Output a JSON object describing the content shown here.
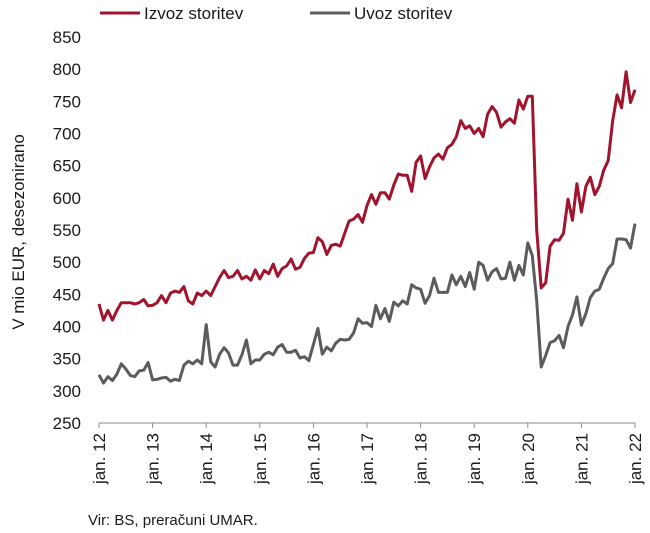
{
  "chart_data": {
    "type": "line",
    "title": "",
    "ylabel": "V mio EUR, desezonirano",
    "xlabel": "",
    "ylim": [
      250,
      850
    ],
    "yticks": [
      250,
      300,
      350,
      400,
      450,
      500,
      550,
      600,
      650,
      700,
      750,
      800,
      850
    ],
    "x_start": "2012-01",
    "x_end": "2022-01",
    "x_frequency": "monthly",
    "xticks": [
      "jan. 12",
      "jan. 13",
      "jan. 14",
      "jan. 15",
      "jan. 16",
      "jan. 17",
      "jan. 18",
      "jan. 19",
      "jan. 20",
      "jan. 21",
      "jan. 22"
    ],
    "grid": false,
    "legend_position": "top-left",
    "series": [
      {
        "name": "Izvoz storitev",
        "color": "#a0152d",
        "values": [
          435,
          410,
          425,
          410,
          425,
          437,
          437,
          437,
          435,
          437,
          442,
          432,
          433,
          437,
          448,
          437,
          452,
          455,
          453,
          462,
          440,
          435,
          452,
          448,
          455,
          448,
          462,
          476,
          487,
          476,
          478,
          487,
          474,
          478,
          472,
          488,
          474,
          487,
          482,
          497,
          478,
          490,
          494,
          505,
          489,
          492,
          506,
          514,
          515,
          538,
          532,
          512,
          526,
          528,
          525,
          545,
          564,
          567,
          574,
          562,
          588,
          605,
          590,
          608,
          608,
          598,
          620,
          637,
          635,
          635,
          610,
          655,
          665,
          630,
          648,
          662,
          668,
          660,
          678,
          683,
          695,
          720,
          708,
          712,
          700,
          708,
          695,
          730,
          742,
          733,
          710,
          718,
          723,
          716,
          752,
          738,
          758,
          758,
          550,
          460,
          468,
          525,
          535,
          534,
          545,
          598,
          565,
          622,
          578,
          618,
          632,
          605,
          618,
          643,
          658,
          720,
          760,
          740,
          796,
          748,
          768
        ]
      },
      {
        "name": "Uvoz storitev",
        "color": "#5c5c5c",
        "values": [
          325,
          312,
          322,
          316,
          326,
          342,
          334,
          324,
          322,
          331,
          332,
          344,
          317,
          318,
          320,
          321,
          315,
          318,
          316,
          340,
          346,
          342,
          348,
          342,
          403,
          345,
          337,
          357,
          367,
          359,
          340,
          340,
          356,
          379,
          342,
          348,
          348,
          357,
          360,
          356,
          368,
          372,
          360,
          360,
          363,
          351,
          353,
          347,
          372,
          397,
          357,
          368,
          362,
          374,
          380,
          379,
          380,
          390,
          412,
          405,
          406,
          400,
          433,
          412,
          428,
          408,
          438,
          432,
          440,
          435,
          465,
          460,
          458,
          436,
          448,
          475,
          453,
          453,
          453,
          480,
          465,
          478,
          462,
          484,
          458,
          500,
          495,
          472,
          485,
          490,
          474,
          475,
          500,
          472,
          495,
          480,
          530,
          510,
          440,
          337,
          355,
          375,
          378,
          386,
          367,
          400,
          418,
          446,
          402,
          420,
          445,
          455,
          458,
          475,
          490,
          498,
          536,
          536,
          535,
          522,
          560
        ]
      }
    ]
  },
  "legend": [
    {
      "label": "Izvoz storitev",
      "color": "#a0152d"
    },
    {
      "label": "Uvoz storitev",
      "color": "#5c5c5c"
    }
  ],
  "source": "Vir: BS, preračuni UMAR."
}
